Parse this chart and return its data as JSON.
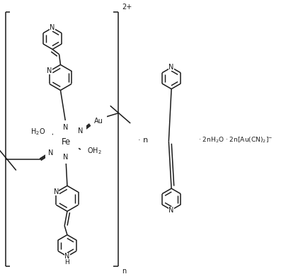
{
  "bg": "#ffffff",
  "lc": "#1a1a1a",
  "lw": 1.1,
  "fs": 7.0,
  "xlim": [
    0,
    404
  ],
  "ylim": [
    0,
    394
  ]
}
